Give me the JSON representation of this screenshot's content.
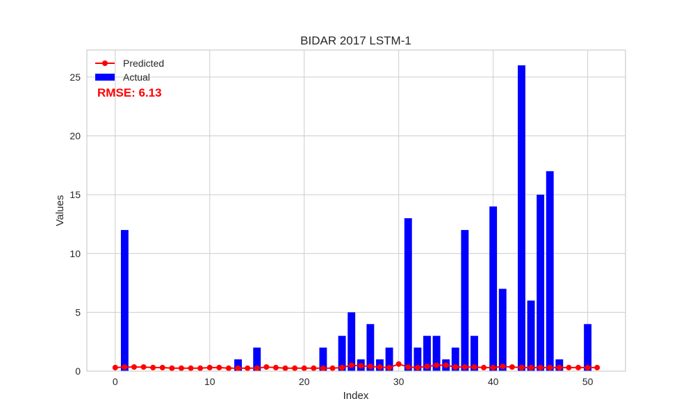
{
  "chart_data": {
    "type": "bar",
    "title": "BIDAR 2017 LSTM-1",
    "xlabel": "Index",
    "ylabel": "Values",
    "xlim": [
      -3,
      54
    ],
    "ylim": [
      0,
      27.3
    ],
    "xticks": [
      0,
      10,
      20,
      30,
      40,
      50
    ],
    "yticks": [
      0,
      5,
      10,
      15,
      20,
      25
    ],
    "grid": true,
    "legend_position": "top-left",
    "annotation": "RMSE: 6.13",
    "colors": {
      "actual": "#0000ff",
      "predicted": "#ff0000",
      "annotation": "#ff0000"
    },
    "series": [
      {
        "name": "Predicted",
        "kind": "line-marker",
        "x": [
          0,
          1,
          2,
          3,
          4,
          5,
          6,
          7,
          8,
          9,
          10,
          11,
          12,
          13,
          14,
          15,
          16,
          17,
          18,
          19,
          20,
          21,
          22,
          23,
          24,
          25,
          26,
          27,
          28,
          29,
          30,
          31,
          32,
          33,
          34,
          35,
          36,
          37,
          38,
          39,
          40,
          41,
          42,
          43,
          44,
          45,
          46,
          47,
          48,
          49,
          50,
          51
        ],
        "values": [
          0.3,
          0.35,
          0.35,
          0.35,
          0.3,
          0.3,
          0.25,
          0.25,
          0.25,
          0.25,
          0.3,
          0.3,
          0.25,
          0.25,
          0.25,
          0.25,
          0.35,
          0.3,
          0.25,
          0.25,
          0.25,
          0.25,
          0.25,
          0.25,
          0.3,
          0.5,
          0.45,
          0.4,
          0.35,
          0.3,
          0.6,
          0.35,
          0.3,
          0.4,
          0.5,
          0.5,
          0.35,
          0.35,
          0.35,
          0.3,
          0.3,
          0.4,
          0.35,
          0.3,
          0.3,
          0.3,
          0.3,
          0.3,
          0.3,
          0.3,
          0.3,
          0.3
        ]
      },
      {
        "name": "Actual",
        "kind": "bar",
        "x": [
          0,
          1,
          2,
          3,
          4,
          5,
          6,
          7,
          8,
          9,
          10,
          11,
          12,
          13,
          14,
          15,
          16,
          17,
          18,
          19,
          20,
          21,
          22,
          23,
          24,
          25,
          26,
          27,
          28,
          29,
          30,
          31,
          32,
          33,
          34,
          35,
          36,
          37,
          38,
          39,
          40,
          41,
          42,
          43,
          44,
          45,
          46,
          47,
          48,
          49,
          50,
          51
        ],
        "values": [
          0,
          12,
          0,
          0,
          0,
          0,
          0,
          0,
          0,
          0,
          0,
          0,
          0,
          1,
          0,
          2,
          0,
          0,
          0,
          0,
          0,
          0,
          2,
          0,
          3,
          5,
          1,
          4,
          1,
          2,
          0,
          13,
          2,
          3,
          3,
          1,
          2,
          12,
          3,
          0,
          14,
          7,
          0,
          26,
          6,
          15,
          17,
          1,
          0,
          0,
          4,
          0
        ]
      }
    ]
  }
}
